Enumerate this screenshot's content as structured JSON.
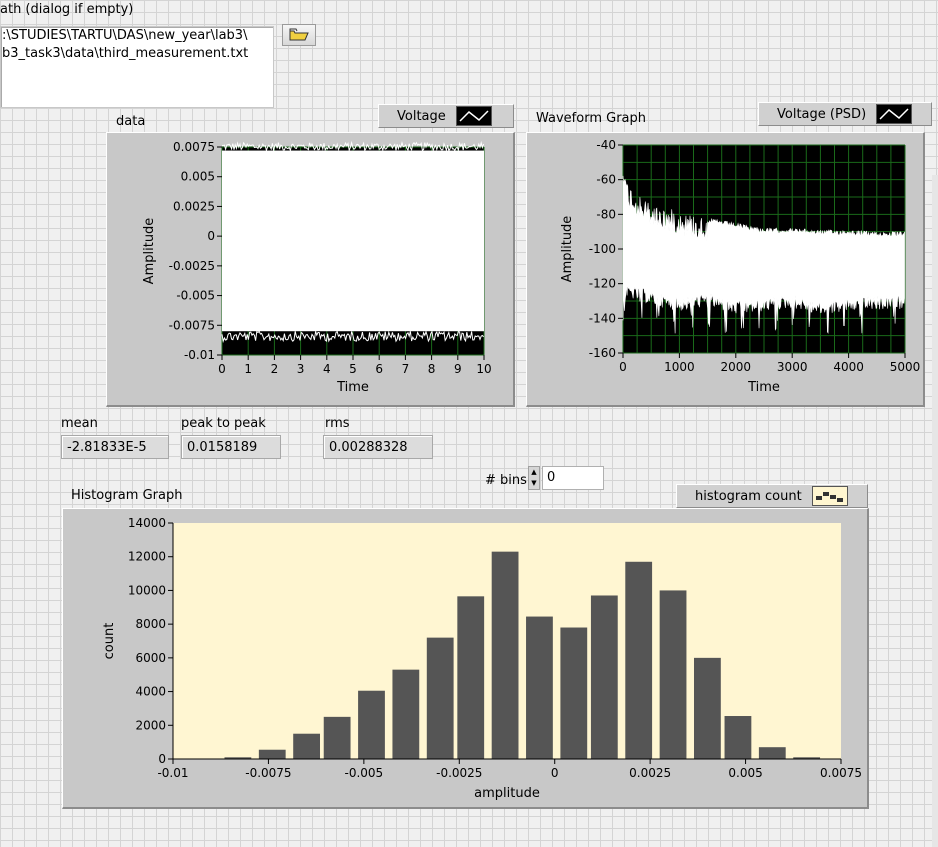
{
  "file_path": {
    "label": "ath (dialog if empty)",
    "line1": ":\\STUDIES\\TARTU\\DAS\\new_year\\lab3\\",
    "line2": "b3_task3\\data\\third_measurement.txt"
  },
  "data_graph": {
    "label": "data",
    "legend": "Voltage",
    "xlabel": "Time",
    "ylabel": "Amplitude",
    "xticks": [
      "0",
      "1",
      "2",
      "3",
      "4",
      "5",
      "6",
      "7",
      "8",
      "9",
      "10"
    ],
    "yticks": [
      "0.0075",
      "0.005",
      "0.0025",
      "0",
      "-0.0025",
      "-0.005",
      "-0.0075",
      "-0.01"
    ]
  },
  "psd_graph": {
    "label": "Waveform Graph",
    "legend": "Voltage (PSD)",
    "xlabel": "Time",
    "ylabel": "Amplitude",
    "xticks": [
      "0",
      "1000",
      "2000",
      "3000",
      "4000",
      "5000"
    ],
    "yticks": [
      "-40",
      "-60",
      "-80",
      "-100",
      "-120",
      "-140",
      "-160"
    ]
  },
  "stats": {
    "mean_label": "mean",
    "mean_value": "-2.81833E-5",
    "p2p_label": "peak to peak",
    "p2p_value": "0.0158189",
    "rms_label": "rms",
    "rms_value": "0.00288328"
  },
  "bins": {
    "label": "# bins",
    "value": "0"
  },
  "histogram": {
    "label": "Histogram Graph",
    "legend": "histogram count"
  },
  "chart_data": [
    {
      "type": "line",
      "title": "data",
      "xlabel": "Time",
      "ylabel": "Amplitude",
      "xlim": [
        0,
        10
      ],
      "ylim": [
        -0.01,
        0.0075
      ],
      "grid": true,
      "series": [
        {
          "name": "Voltage",
          "envelope_upper": 0.0072,
          "envelope_lower": -0.008
        }
      ]
    },
    {
      "type": "line",
      "title": "Waveform Graph",
      "xlabel": "Time",
      "ylabel": "Amplitude",
      "xlim": [
        0,
        5000
      ],
      "ylim": [
        -160,
        -40
      ],
      "grid": true,
      "series": [
        {
          "name": "Voltage (PSD)",
          "x": [
            0,
            50,
            300,
            600,
            1000,
            1500,
            2000,
            2500,
            3000,
            3500,
            4000,
            4500,
            5000
          ],
          "upper": [
            -45,
            -60,
            -70,
            -75,
            -78,
            -82,
            -85,
            -88,
            -88,
            -89,
            -89,
            -90,
            -90
          ],
          "lower": [
            -120,
            -120,
            -122,
            -125,
            -128,
            -125,
            -130,
            -128,
            -126,
            -130,
            -128,
            -127,
            -127
          ]
        }
      ]
    },
    {
      "type": "bar",
      "title": "Histogram Graph",
      "xlabel": "amplitude",
      "ylabel": "count",
      "xlim": [
        -0.01,
        0.0075
      ],
      "ylim": [
        0,
        14000
      ],
      "xticks": [
        "-0.01",
        "-0.0075",
        "-0.005",
        "-0.0025",
        "0",
        "0.0025",
        "0.005",
        "0.0075"
      ],
      "yticks": [
        "0",
        "2000",
        "4000",
        "6000",
        "8000",
        "10000",
        "12000",
        "14000"
      ],
      "legend": "histogram count",
      "x": [
        -0.0083,
        -0.0074,
        -0.0065,
        -0.0057,
        -0.0048,
        -0.0039,
        -0.003,
        -0.0022,
        -0.0013,
        -0.0004,
        0.0005,
        0.0013,
        0.0022,
        0.0031,
        0.004,
        0.0048,
        0.0057,
        0.0066
      ],
      "values": [
        100,
        550,
        1500,
        2500,
        4050,
        5300,
        7200,
        9650,
        12300,
        8450,
        7800,
        9700,
        11700,
        10000,
        6000,
        2550,
        700,
        100
      ]
    }
  ]
}
